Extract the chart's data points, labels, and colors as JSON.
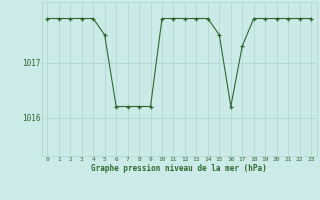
{
  "hours": [
    0,
    1,
    2,
    3,
    4,
    5,
    6,
    7,
    8,
    9,
    10,
    11,
    12,
    13,
    14,
    15,
    16,
    17,
    18,
    19,
    20,
    21,
    22,
    23
  ],
  "pressure": [
    1017.8,
    1017.8,
    1017.8,
    1017.8,
    1017.8,
    1017.5,
    1016.2,
    1016.2,
    1016.2,
    1016.2,
    1017.8,
    1017.8,
    1017.8,
    1017.8,
    1017.8,
    1017.5,
    1016.2,
    1017.3,
    1017.8,
    1017.8,
    1017.8,
    1017.8,
    1017.8,
    1017.8
  ],
  "ylim": [
    1015.3,
    1018.1
  ],
  "yticks": [
    1016,
    1017
  ],
  "xticks": [
    0,
    1,
    2,
    3,
    4,
    5,
    6,
    7,
    8,
    9,
    10,
    11,
    12,
    13,
    14,
    15,
    16,
    17,
    18,
    19,
    20,
    21,
    22,
    23
  ],
  "xlabel": "Graphe pression niveau de la mer (hPa)",
  "line_color": "#2d6a2d",
  "bg_color": "#cceae8",
  "grid_color": "#b0d4d0",
  "marker": "+"
}
